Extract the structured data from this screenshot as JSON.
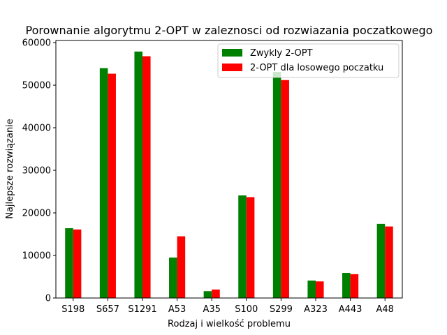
{
  "chart_data": {
    "type": "bar",
    "title": "Porownanie algorytmu 2-OPT w zaleznosci od rozwiazania poczatkowego",
    "xlabel": "Rodzaj i wielkość problemu",
    "ylabel": "Najlepsze rozwiązanie",
    "ylim": [
      0,
      60500
    ],
    "yticks": [
      0,
      10000,
      20000,
      30000,
      40000,
      50000,
      60000
    ],
    "grid": false,
    "legend_position": "top-right",
    "categories": [
      "S198",
      "S657",
      "S1291",
      "A53",
      "A35",
      "S100",
      "S299",
      "A323",
      "A443",
      "A48"
    ],
    "series": [
      {
        "name": "Zwykly 2-OPT",
        "color": "#008000",
        "values": [
          16400,
          54000,
          57900,
          9500,
          1600,
          24100,
          53100,
          4100,
          5900,
          17400
        ]
      },
      {
        "name": "2-OPT dla losowego poczatku",
        "color": "#ff0000",
        "values": [
          16100,
          52700,
          56800,
          14500,
          2000,
          23700,
          51200,
          3900,
          5600,
          16800
        ]
      }
    ]
  }
}
